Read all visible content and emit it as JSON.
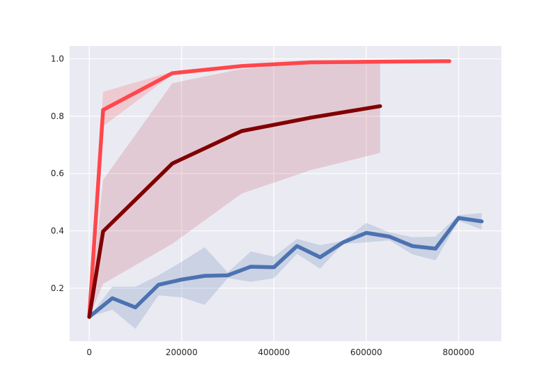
{
  "chart_data": {
    "type": "line",
    "title": "",
    "xlabel": "",
    "ylabel": "",
    "xlim": [
      -42500,
      892500
    ],
    "ylim": [
      0.015,
      1.045
    ],
    "x_ticks": [
      0,
      200000,
      400000,
      600000,
      800000
    ],
    "y_ticks": [
      0.2,
      0.4,
      0.6,
      0.8,
      1.0
    ],
    "grid": true,
    "background": "#eaeaf2",
    "series": [
      {
        "color": "#4c72b0",
        "band_color": "#4c72b0",
        "points": [
          {
            "x": 0,
            "y": 0.1,
            "lo": 0.1,
            "hi": 0.1
          },
          {
            "x": 50000,
            "y": 0.165,
            "lo": 0.125,
            "hi": 0.205
          },
          {
            "x": 100000,
            "y": 0.133,
            "lo": 0.058,
            "hi": 0.205
          },
          {
            "x": 150000,
            "y": 0.212,
            "lo": 0.175,
            "hi": 0.245
          },
          {
            "x": 200000,
            "y": 0.23,
            "lo": 0.168,
            "hi": 0.292
          },
          {
            "x": 250000,
            "y": 0.243,
            "lo": 0.142,
            "hi": 0.343
          },
          {
            "x": 300000,
            "y": 0.245,
            "lo": 0.235,
            "hi": 0.255
          },
          {
            "x": 350000,
            "y": 0.275,
            "lo": 0.222,
            "hi": 0.328
          },
          {
            "x": 400000,
            "y": 0.273,
            "lo": 0.235,
            "hi": 0.31
          },
          {
            "x": 450000,
            "y": 0.347,
            "lo": 0.32,
            "hi": 0.372
          },
          {
            "x": 500000,
            "y": 0.308,
            "lo": 0.268,
            "hi": 0.35
          },
          {
            "x": 550000,
            "y": 0.36,
            "lo": 0.355,
            "hi": 0.365
          },
          {
            "x": 600000,
            "y": 0.393,
            "lo": 0.36,
            "hi": 0.428
          },
          {
            "x": 650000,
            "y": 0.38,
            "lo": 0.367,
            "hi": 0.395
          },
          {
            "x": 700000,
            "y": 0.347,
            "lo": 0.318,
            "hi": 0.378
          },
          {
            "x": 750000,
            "y": 0.338,
            "lo": 0.297,
            "hi": 0.38
          },
          {
            "x": 800000,
            "y": 0.445,
            "lo": 0.435,
            "hi": 0.455
          },
          {
            "x": 850000,
            "y": 0.433,
            "lo": 0.405,
            "hi": 0.462
          }
        ]
      },
      {
        "color": "#ff474c",
        "band_color": "#ff474c",
        "points": [
          {
            "x": 0,
            "y": 0.1,
            "lo": 0.1,
            "hi": 0.1
          },
          {
            "x": 30000,
            "y": 0.822,
            "lo": 0.765,
            "hi": 0.885
          },
          {
            "x": 180000,
            "y": 0.95,
            "lo": 0.945,
            "hi": 0.955
          },
          {
            "x": 330000,
            "y": 0.975,
            "lo": 0.972,
            "hi": 0.978
          },
          {
            "x": 480000,
            "y": 0.988,
            "lo": 0.986,
            "hi": 0.99
          },
          {
            "x": 630000,
            "y": 0.99,
            "lo": 0.988,
            "hi": 0.992
          },
          {
            "x": 780000,
            "y": 0.992,
            "lo": 0.99,
            "hi": 0.994
          }
        ]
      },
      {
        "color": "#800000",
        "band_color": "#c4495e",
        "points": [
          {
            "x": 0,
            "y": 0.1,
            "lo": 0.1,
            "hi": 0.1
          },
          {
            "x": 30000,
            "y": 0.398,
            "lo": 0.215,
            "hi": 0.578
          },
          {
            "x": 180000,
            "y": 0.635,
            "lo": 0.355,
            "hi": 0.915
          },
          {
            "x": 330000,
            "y": 0.748,
            "lo": 0.53,
            "hi": 0.965
          },
          {
            "x": 480000,
            "y": 0.795,
            "lo": 0.612,
            "hi": 0.985
          },
          {
            "x": 630000,
            "y": 0.835,
            "lo": 0.672,
            "hi": 0.988
          }
        ]
      }
    ]
  }
}
